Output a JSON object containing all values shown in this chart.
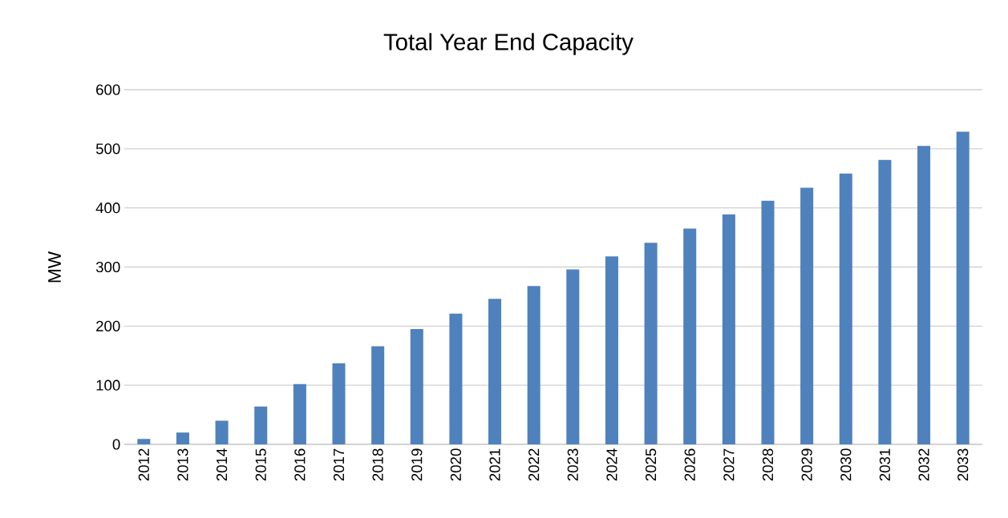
{
  "chart_data": {
    "type": "bar",
    "title": "Total Year End Capacity",
    "ylabel": "MW",
    "categories": [
      "2012",
      "2013",
      "2014",
      "2015",
      "2016",
      "2017",
      "2018",
      "2019",
      "2020",
      "2021",
      "2022",
      "2023",
      "2024",
      "2025",
      "2026",
      "2027",
      "2028",
      "2029",
      "2030",
      "2031",
      "2032",
      "2033"
    ],
    "values": [
      9,
      20,
      40,
      64,
      102,
      137,
      166,
      195,
      221,
      246,
      268,
      296,
      318,
      341,
      365,
      389,
      412,
      434,
      458,
      481,
      505,
      529
    ],
    "color": "#4f81bd",
    "ylim": [
      0,
      600
    ],
    "yticks": [
      0,
      100,
      200,
      300,
      400,
      500,
      600
    ],
    "grid": "y"
  }
}
